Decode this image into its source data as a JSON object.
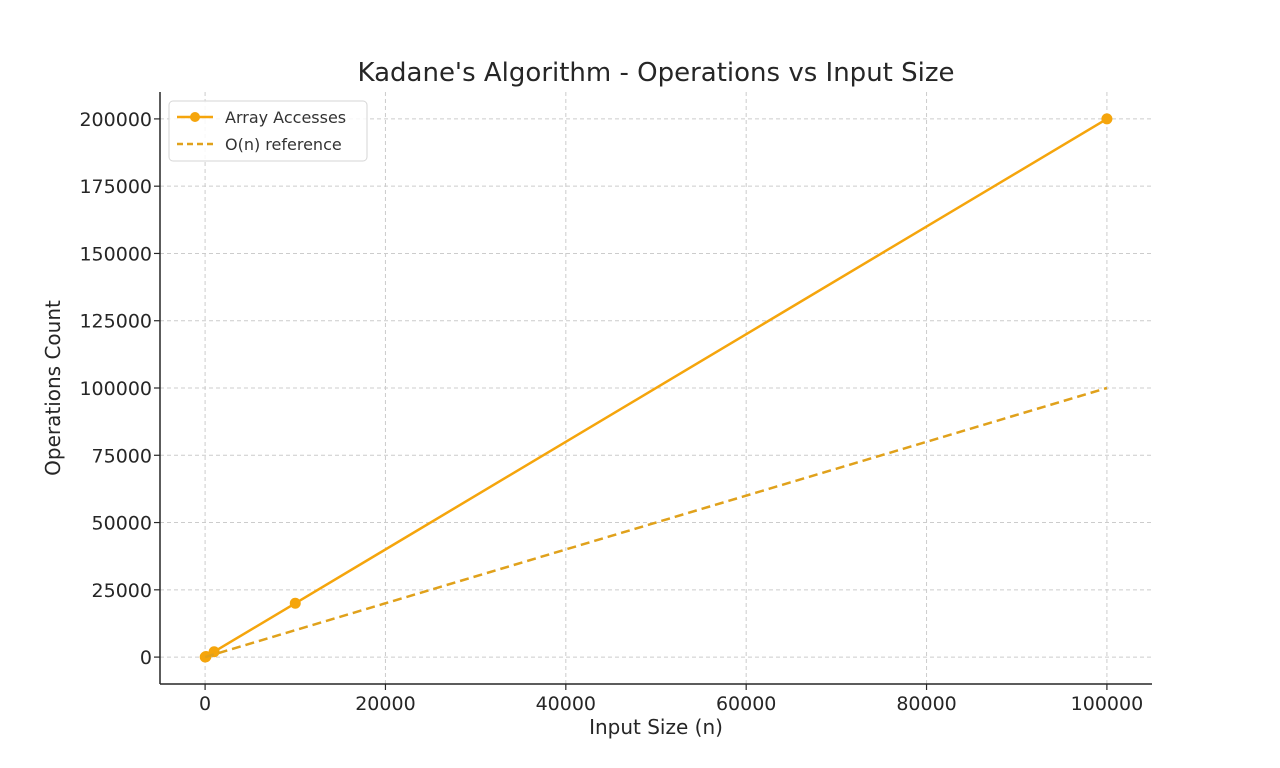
{
  "chart_data": {
    "type": "line",
    "title": "Kadane's Algorithm - Operations vs Input Size",
    "xlabel": "Input Size (n)",
    "ylabel": "Operations Count",
    "xlim": [
      -5000,
      105000
    ],
    "ylim": [
      -10000,
      210000
    ],
    "xticks": [
      0,
      20000,
      40000,
      60000,
      80000,
      100000
    ],
    "yticks": [
      0,
      25000,
      50000,
      75000,
      100000,
      125000,
      150000,
      175000,
      200000
    ],
    "grid": true,
    "legend_position": "top-left",
    "series": [
      {
        "name": "Array Accesses",
        "x": [
          10,
          100,
          1000,
          10000,
          100000
        ],
        "y": [
          20,
          200,
          2000,
          20000,
          200000
        ],
        "color": "#f5a50c",
        "line_style": "solid",
        "marker": "circle"
      },
      {
        "name": "O(n) reference",
        "x": [
          10,
          100,
          1000,
          10000,
          100000
        ],
        "y": [
          10,
          100,
          1000,
          10000,
          100000
        ],
        "color": "#e0a11b",
        "line_style": "dashed",
        "marker": "none"
      }
    ]
  }
}
